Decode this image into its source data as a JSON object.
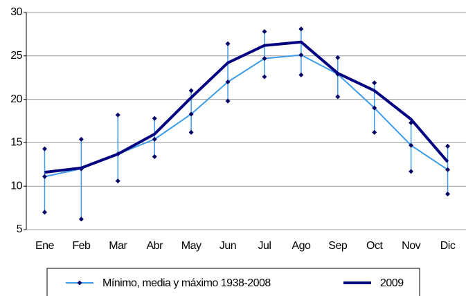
{
  "chart_data": {
    "type": "line",
    "categories": [
      "Ene",
      "Feb",
      "Mar",
      "Abr",
      "May",
      "Jun",
      "Jul",
      "Ago",
      "Sep",
      "Oct",
      "Nov",
      "Dic"
    ],
    "series": [
      {
        "name": "Mínimo, media y máximo 1938-2008",
        "color": "#3d9be9",
        "marker_color": "#000066",
        "values": [
          11.1,
          12.0,
          13.7,
          15.4,
          18.3,
          22.0,
          24.7,
          25.1,
          22.9,
          19.0,
          14.7,
          11.9
        ],
        "low": [
          7.0,
          6.2,
          10.6,
          13.4,
          16.2,
          19.8,
          22.6,
          22.8,
          20.3,
          16.2,
          11.7,
          9.1
        ],
        "high": [
          14.3,
          15.4,
          18.2,
          17.8,
          21.0,
          26.4,
          27.8,
          28.1,
          24.8,
          21.9,
          17.3,
          14.6
        ]
      },
      {
        "name": "2009",
        "color": "#000080",
        "values": [
          11.6,
          12.1,
          13.7,
          16.0,
          20.2,
          24.2,
          26.2,
          26.6,
          23.0,
          21.0,
          17.7,
          12.8
        ]
      }
    ],
    "ylim": [
      5,
      30
    ],
    "yticks": [
      5,
      10,
      15,
      20,
      25,
      30
    ],
    "grid": true,
    "legend": "bottom"
  }
}
